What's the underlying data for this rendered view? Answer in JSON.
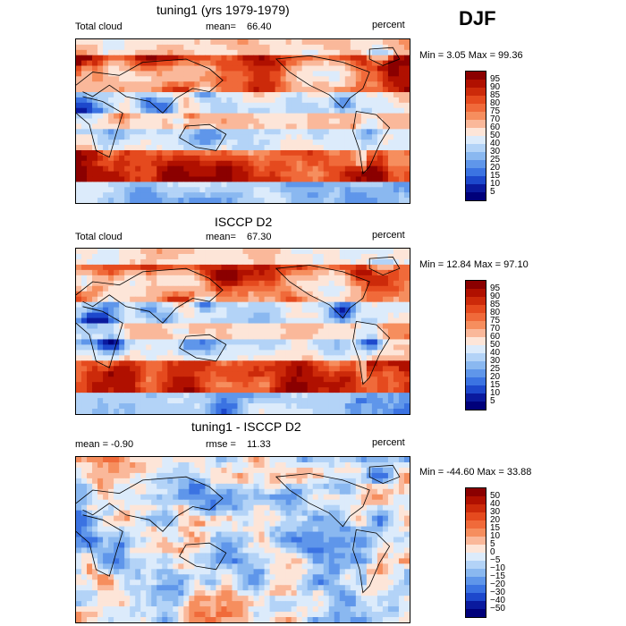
{
  "season": "DJF",
  "chart_data": [
    {
      "type": "heatmap",
      "title": "tuning1 (yrs 1979-1979)",
      "variable": "Total cloud",
      "stat_label": "mean=",
      "stat_value": "66.40",
      "units": "percent",
      "minmax": "Min =   3.05 Max =  99.36",
      "colorbar_levels": [
        "95",
        "90",
        "85",
        "80",
        "75",
        "70",
        "60",
        "50",
        "40",
        "30",
        "25",
        "20",
        "15",
        "10",
        "5"
      ],
      "colorbar_colors": [
        "#8b0000",
        "#b01000",
        "#cc2a0a",
        "#e54a1e",
        "#f06a3a",
        "#f68e5e",
        "#fab89a",
        "#fde5d8",
        "#dcebfb",
        "#b3d3f7",
        "#8ab8f0",
        "#5f96ea",
        "#3b73e2",
        "#1d48cc",
        "#0a1a9e",
        "#00007a"
      ],
      "field_mean": 66.4,
      "min": 3.05,
      "max": 99.36
    },
    {
      "type": "heatmap",
      "title": "ISCCP D2",
      "variable": "Total cloud",
      "stat_label": "mean=",
      "stat_value": "67.30",
      "units": "percent",
      "minmax": "Min =  12.84 Max =  97.10",
      "colorbar_levels": [
        "95",
        "90",
        "85",
        "80",
        "75",
        "70",
        "60",
        "50",
        "40",
        "30",
        "25",
        "20",
        "15",
        "10",
        "5"
      ],
      "colorbar_colors": [
        "#8b0000",
        "#b01000",
        "#cc2a0a",
        "#e54a1e",
        "#f06a3a",
        "#f68e5e",
        "#fab89a",
        "#fde5d8",
        "#dcebfb",
        "#b3d3f7",
        "#8ab8f0",
        "#5f96ea",
        "#3b73e2",
        "#1d48cc",
        "#0a1a9e",
        "#00007a"
      ],
      "field_mean": 67.3,
      "min": 12.84,
      "max": 97.1
    },
    {
      "type": "heatmap",
      "title": "tuning1 - ISCCP D2",
      "variable": "mean =  -0.90",
      "stat_label": "rmse =",
      "stat_value": "11.33",
      "units": "percent",
      "minmax": "Min = -44.60 Max =  33.88",
      "colorbar_levels": [
        "50",
        "40",
        "30",
        "20",
        "15",
        "10",
        "5",
        "0",
        "−5",
        "−10",
        "−15",
        "−20",
        "−30",
        "−40",
        "−50"
      ],
      "colorbar_colors": [
        "#8b0000",
        "#b01000",
        "#cc2a0a",
        "#e54a1e",
        "#f06a3a",
        "#f68e5e",
        "#fab89a",
        "#fde5d8",
        "#dcebfb",
        "#b3d3f7",
        "#8ab8f0",
        "#5f96ea",
        "#3b73e2",
        "#1d48cc",
        "#0a1a9e",
        "#00007a"
      ],
      "field_mean": -0.9,
      "rmse": 11.33,
      "min": -44.6,
      "max": 33.88
    }
  ]
}
